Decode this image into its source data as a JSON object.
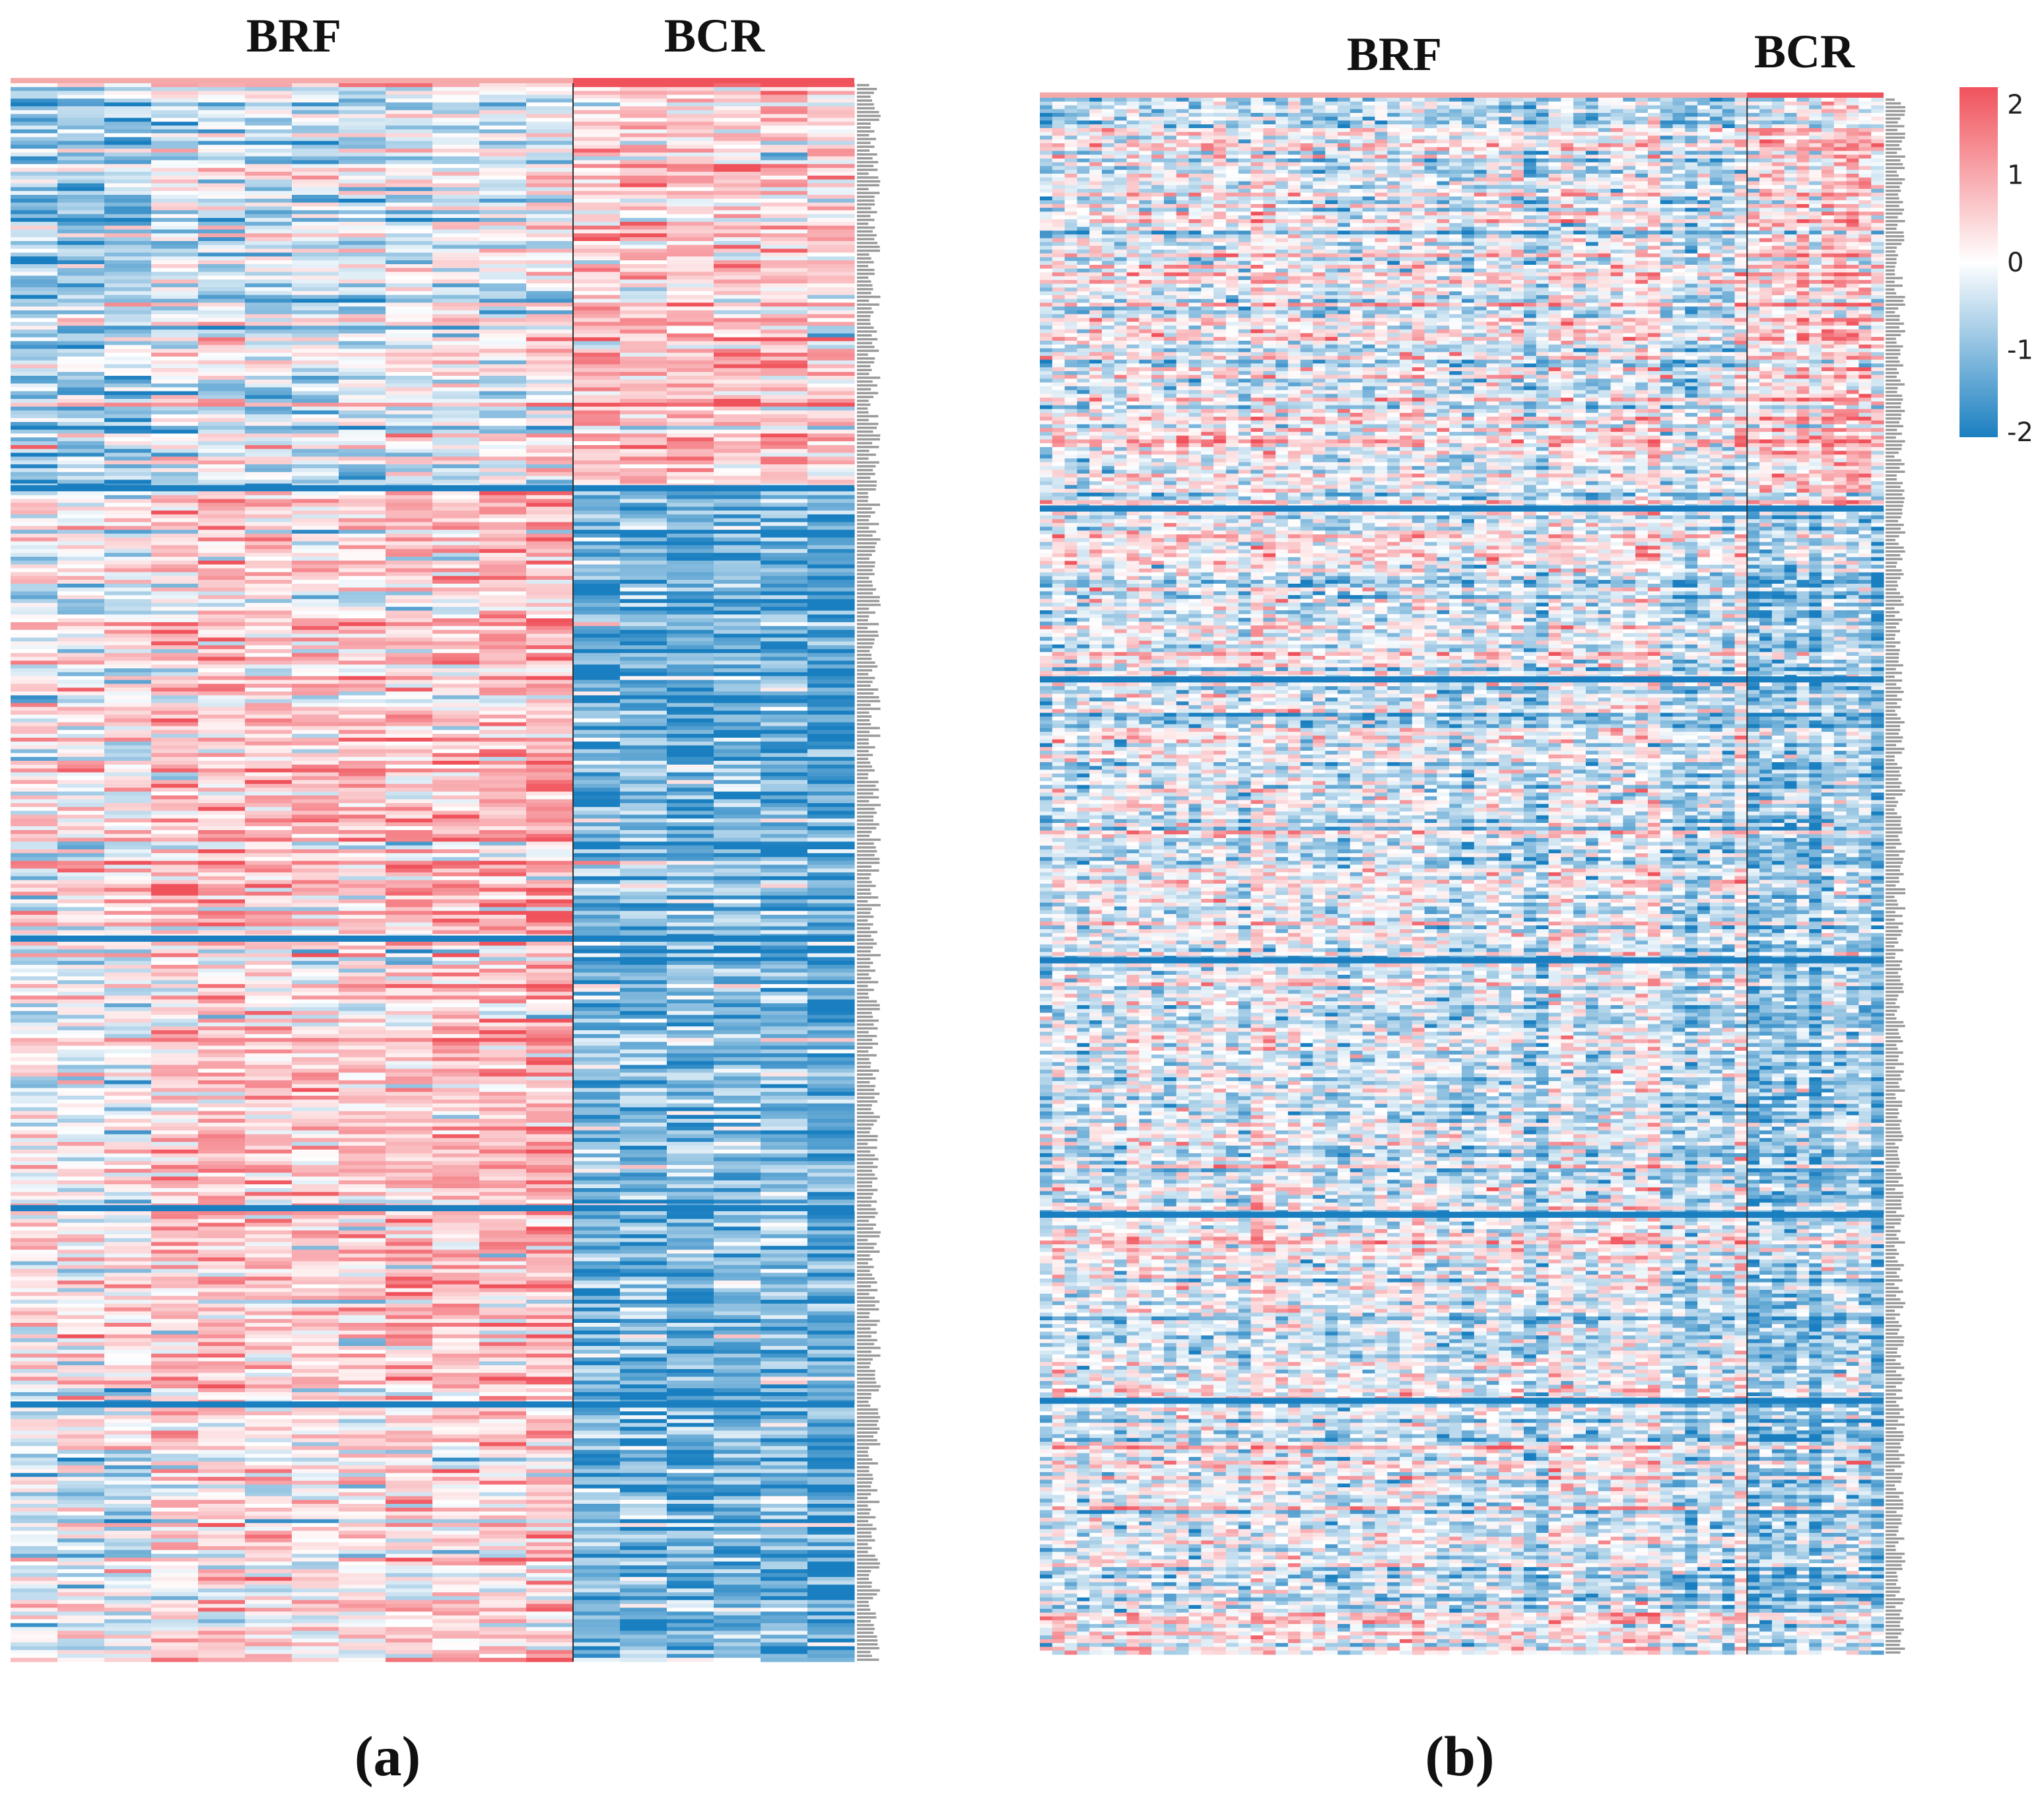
{
  "figure": {
    "colors": {
      "low": "#1a7fc0",
      "mid": "#ffffff",
      "high": "#f0525b",
      "divider": "#333333"
    }
  },
  "legend": {
    "ticks": [
      "2",
      "1",
      "0",
      "-1",
      "-2"
    ],
    "tick_values": [
      2,
      1,
      0,
      -1,
      -2
    ]
  },
  "chart_data": [
    {
      "type": "heatmap",
      "panel_label": "(a)",
      "column_groups": [
        {
          "label": "BRF",
          "n_columns": 12,
          "color": "#f4aaa8"
        },
        {
          "label": "BCR",
          "n_columns": 6,
          "color": "#f0525b"
        }
      ],
      "n_rows": 410,
      "row_cluster_sizes": [
        105,
        117,
        70,
        51,
        67
      ],
      "row_labels_visible": false,
      "value_range": [
        -2,
        2
      ],
      "color_scale": "blue-white-red"
    },
    {
      "type": "heatmap",
      "panel_label": "(b)",
      "column_groups": [
        {
          "label": "BRF",
          "n_columns": 57,
          "color": "#f4aaa8"
        },
        {
          "label": "BCR",
          "n_columns": 11,
          "color": "#f0525b"
        }
      ],
      "n_rows": 410,
      "row_cluster_sizes": [
        108,
        45,
        74,
        67,
        49,
        67
      ],
      "row_labels_visible": false,
      "value_range": [
        -2,
        2
      ],
      "color_scale": "blue-white-red"
    }
  ]
}
